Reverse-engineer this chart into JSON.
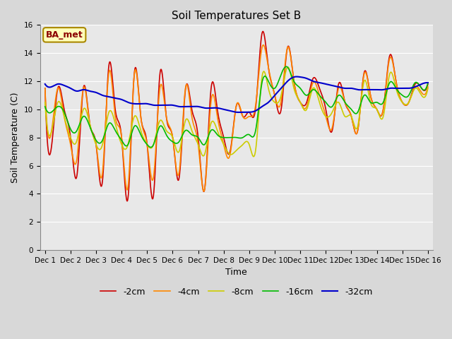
{
  "title": "Soil Temperatures Set B",
  "xlabel": "Time",
  "ylabel": "Soil Temperature (C)",
  "ylim": [
    0,
    16
  ],
  "ytick_values": [
    0,
    2,
    4,
    6,
    8,
    10,
    12,
    14,
    16
  ],
  "xtick_labels": [
    "Dec 1",
    "Dec 2",
    "Dec 3",
    "Dec 4",
    "Dec 5",
    "Dec 6",
    "Dec 7",
    "Dec 8",
    "Dec 9",
    "Dec 10",
    "Dec 11",
    "Dec 12",
    "Dec 13",
    "Dec 14",
    "Dec 15",
    "Dec 16"
  ],
  "annotation_text": "BA_met",
  "series_colors": [
    "#cc0000",
    "#ff8800",
    "#cccc00",
    "#00bb00",
    "#0000cc"
  ],
  "series_labels": [
    "-2cm",
    "-4cm",
    "-8cm",
    "-16cm",
    "-32cm"
  ],
  "series_linewidths": [
    1.2,
    1.2,
    1.2,
    1.2,
    1.5
  ],
  "bg_color": "#d8d8d8",
  "plot_bg_color": "#e8e8e8",
  "grid_color": "#ffffff",
  "title_fontsize": 11,
  "axis_label_fontsize": 9,
  "tick_fontsize": 7.5,
  "annotation_fontsize": 9,
  "legend_fontsize": 9
}
